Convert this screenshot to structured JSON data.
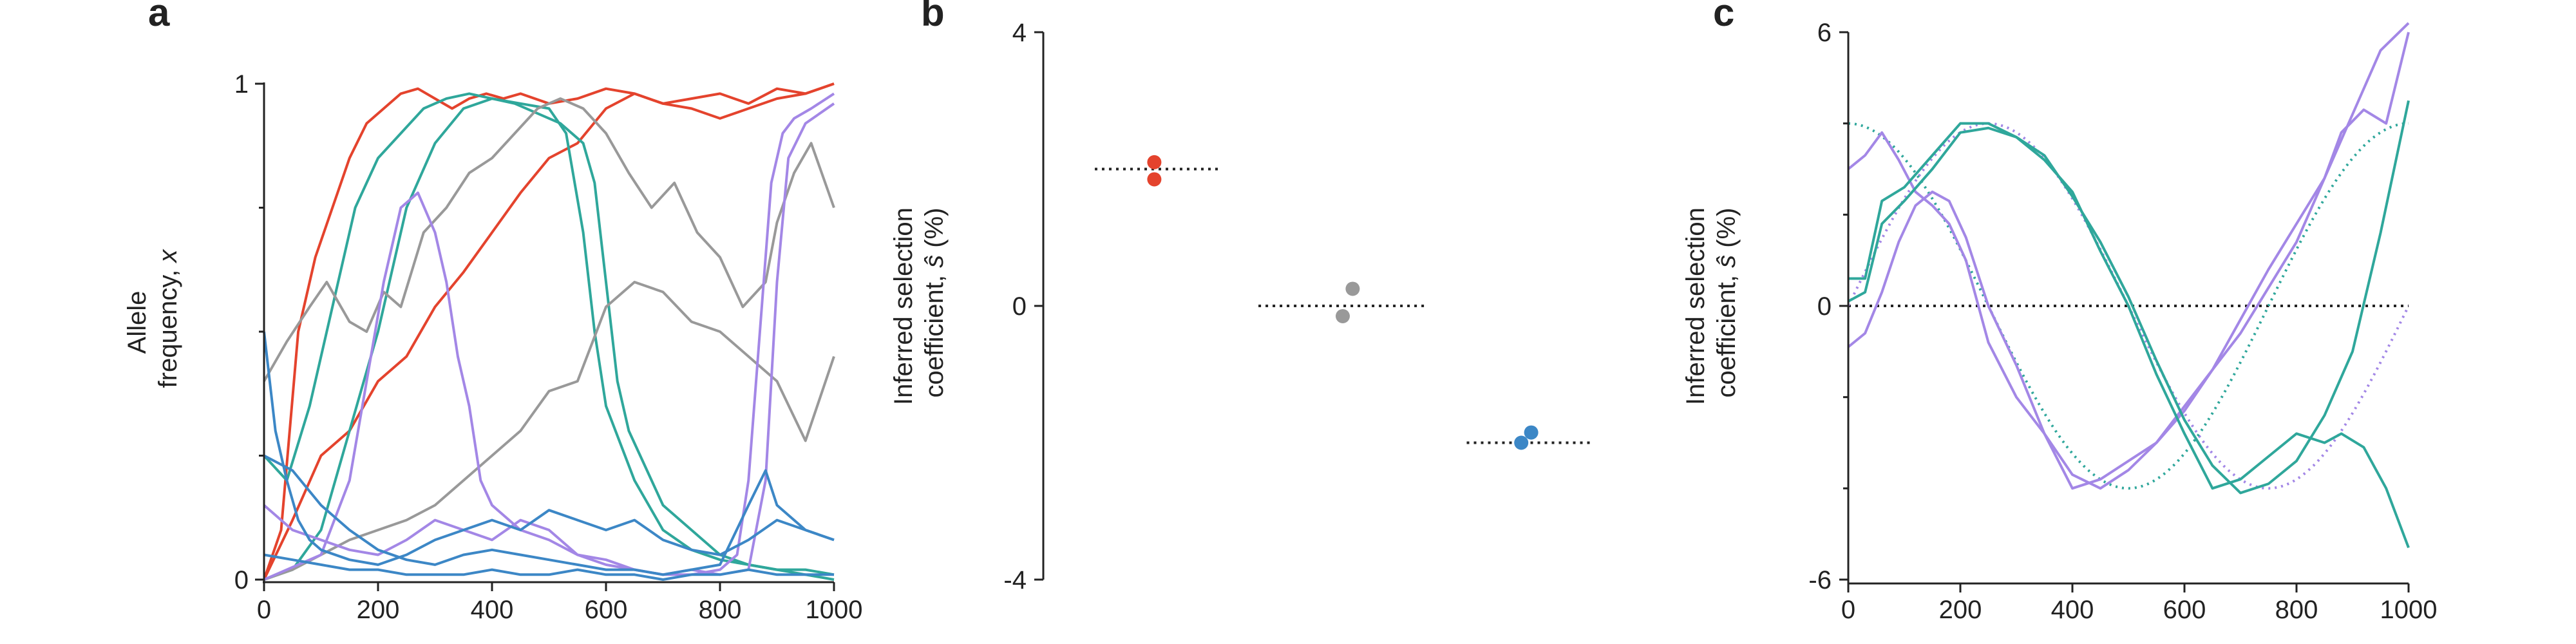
{
  "colors": {
    "red": "#e4432d",
    "teal": "#2fa79b",
    "grey": "#999999",
    "purple": "#a387e6",
    "blue": "#3c87c6",
    "axis": "#222222"
  },
  "chart_data": [
    {
      "panel": "a",
      "type": "line",
      "ylabel_line1": "Allele",
      "ylabel_line2": "frequency, ",
      "ylabel_var": "x",
      "xlim": [
        0,
        1000
      ],
      "ylim": [
        0,
        1
      ],
      "xticks": [
        0,
        200,
        400,
        600,
        800,
        1000
      ],
      "yticks": [
        0,
        1
      ],
      "ytick_labels": [
        "0",
        "1"
      ],
      "yminor": [
        0.25,
        0.5,
        0.75
      ],
      "series": [
        {
          "color": "red",
          "x": [
            0,
            30,
            60,
            90,
            120,
            150,
            180,
            210,
            240,
            270,
            300,
            330,
            360,
            390,
            420,
            450,
            500,
            550,
            600,
            650,
            700,
            750,
            800,
            850,
            900,
            950,
            1000
          ],
          "y": [
            0,
            0.1,
            0.5,
            0.65,
            0.75,
            0.85,
            0.92,
            0.95,
            0.98,
            0.99,
            0.97,
            0.95,
            0.97,
            0.98,
            0.97,
            0.98,
            0.96,
            0.97,
            0.99,
            0.98,
            0.96,
            0.97,
            0.98,
            0.96,
            0.99,
            0.98,
            1.0
          ]
        },
        {
          "color": "red",
          "x": [
            0,
            50,
            100,
            150,
            200,
            250,
            300,
            350,
            400,
            450,
            500,
            550,
            600,
            650,
            700,
            750,
            800,
            850,
            900,
            950,
            1000
          ],
          "y": [
            0,
            0.12,
            0.25,
            0.3,
            0.4,
            0.45,
            0.55,
            0.62,
            0.7,
            0.78,
            0.85,
            0.88,
            0.95,
            0.98,
            0.96,
            0.95,
            0.93,
            0.95,
            0.97,
            0.98,
            1.0
          ]
        },
        {
          "color": "teal",
          "x": [
            0,
            40,
            80,
            120,
            160,
            200,
            240,
            280,
            320,
            360,
            400,
            440,
            480,
            520,
            560,
            580,
            600,
            620,
            640,
            660,
            700,
            750,
            800,
            850,
            900,
            950,
            1000
          ],
          "y": [
            0.25,
            0.2,
            0.35,
            0.55,
            0.75,
            0.85,
            0.9,
            0.95,
            0.97,
            0.98,
            0.97,
            0.96,
            0.94,
            0.92,
            0.88,
            0.8,
            0.6,
            0.4,
            0.3,
            0.25,
            0.15,
            0.1,
            0.05,
            0.03,
            0.02,
            0.01,
            0.0
          ]
        },
        {
          "color": "teal",
          "x": [
            0,
            50,
            100,
            150,
            200,
            250,
            300,
            350,
            400,
            450,
            500,
            530,
            560,
            580,
            600,
            650,
            700,
            750,
            800,
            850,
            900,
            950,
            1000
          ],
          "y": [
            0,
            0.02,
            0.1,
            0.3,
            0.5,
            0.75,
            0.88,
            0.95,
            0.97,
            0.96,
            0.95,
            0.9,
            0.7,
            0.5,
            0.35,
            0.2,
            0.1,
            0.06,
            0.04,
            0.03,
            0.02,
            0.02,
            0.01
          ]
        },
        {
          "color": "grey",
          "x": [
            0,
            40,
            80,
            110,
            150,
            180,
            210,
            240,
            280,
            320,
            360,
            400,
            440,
            480,
            520,
            560,
            600,
            640,
            680,
            720,
            760,
            800,
            840,
            880,
            900,
            930,
            960,
            1000
          ],
          "y": [
            0.4,
            0.48,
            0.55,
            0.6,
            0.52,
            0.5,
            0.58,
            0.55,
            0.7,
            0.75,
            0.82,
            0.85,
            0.9,
            0.95,
            0.97,
            0.95,
            0.9,
            0.82,
            0.75,
            0.8,
            0.7,
            0.65,
            0.55,
            0.6,
            0.72,
            0.82,
            0.88,
            0.75
          ]
        },
        {
          "color": "grey",
          "x": [
            0,
            50,
            100,
            150,
            200,
            250,
            300,
            350,
            400,
            450,
            500,
            550,
            600,
            650,
            700,
            750,
            800,
            850,
            900,
            950,
            1000
          ],
          "y": [
            0,
            0.02,
            0.05,
            0.08,
            0.1,
            0.12,
            0.15,
            0.2,
            0.25,
            0.3,
            0.38,
            0.4,
            0.55,
            0.6,
            0.58,
            0.52,
            0.5,
            0.45,
            0.4,
            0.28,
            0.45
          ]
        },
        {
          "color": "purple",
          "x": [
            0,
            100,
            150,
            180,
            210,
            240,
            270,
            300,
            320,
            340,
            360,
            380,
            400,
            450,
            500,
            550,
            600,
            650,
            700,
            750,
            800,
            830,
            850,
            870,
            890,
            910,
            930,
            960,
            1000
          ],
          "y": [
            0,
            0.05,
            0.2,
            0.4,
            0.6,
            0.75,
            0.78,
            0.7,
            0.6,
            0.45,
            0.35,
            0.2,
            0.15,
            0.1,
            0.08,
            0.05,
            0.04,
            0.02,
            0.01,
            0.01,
            0.02,
            0.05,
            0.2,
            0.5,
            0.8,
            0.9,
            0.93,
            0.95,
            0.98
          ]
        },
        {
          "color": "purple",
          "x": [
            0,
            50,
            100,
            150,
            200,
            250,
            300,
            350,
            400,
            450,
            500,
            550,
            600,
            650,
            700,
            750,
            800,
            850,
            880,
            900,
            920,
            950,
            1000
          ],
          "y": [
            0.15,
            0.1,
            0.08,
            0.06,
            0.05,
            0.08,
            0.12,
            0.1,
            0.08,
            0.12,
            0.1,
            0.05,
            0.03,
            0.02,
            0.01,
            0.02,
            0.01,
            0.02,
            0.2,
            0.6,
            0.85,
            0.92,
            0.96
          ]
        },
        {
          "color": "blue",
          "x": [
            0,
            10,
            20,
            40,
            60,
            80,
            100,
            150,
            200,
            250,
            300,
            350,
            400,
            450,
            500,
            550,
            600,
            650,
            700,
            750,
            800,
            850,
            900,
            950,
            1000
          ],
          "y": [
            0.5,
            0.4,
            0.3,
            0.2,
            0.12,
            0.08,
            0.06,
            0.04,
            0.03,
            0.05,
            0.08,
            0.1,
            0.12,
            0.1,
            0.14,
            0.12,
            0.1,
            0.12,
            0.08,
            0.06,
            0.05,
            0.08,
            0.12,
            0.1,
            0.08
          ]
        },
        {
          "color": "blue",
          "x": [
            0,
            50,
            100,
            150,
            200,
            250,
            300,
            350,
            400,
            450,
            500,
            550,
            600,
            650,
            700,
            750,
            800,
            850,
            880,
            900,
            950,
            1000
          ],
          "y": [
            0.25,
            0.22,
            0.15,
            0.1,
            0.06,
            0.04,
            0.03,
            0.05,
            0.06,
            0.05,
            0.04,
            0.03,
            0.02,
            0.02,
            0.01,
            0.02,
            0.03,
            0.15,
            0.22,
            0.15,
            0.1,
            0.08
          ]
        },
        {
          "color": "blue",
          "x": [
            0,
            50,
            100,
            150,
            200,
            250,
            300,
            350,
            400,
            450,
            500,
            550,
            600,
            650,
            700,
            750,
            800,
            850,
            900,
            950,
            1000
          ],
          "y": [
            0.05,
            0.04,
            0.03,
            0.02,
            0.02,
            0.01,
            0.01,
            0.01,
            0.02,
            0.01,
            0.01,
            0.02,
            0.01,
            0.01,
            0.0,
            0.01,
            0.01,
            0.02,
            0.01,
            0.01,
            0.01
          ]
        }
      ]
    },
    {
      "panel": "b",
      "type": "scatter",
      "ylabel_line1": "Inferred selection",
      "ylabel_line2": "coefficient, ",
      "ylabel_var": "ŝ",
      "ylabel_unit": " (%)",
      "ylim": [
        -4,
        4
      ],
      "yticks": [
        -4,
        0,
        4
      ],
      "ytick_labels": [
        "-4",
        "0",
        "4"
      ],
      "groups": [
        {
          "color": "red",
          "true_value": 2,
          "line_x": [
            0.0,
            0.25
          ],
          "points": [
            {
              "x": 0.12,
              "y": 2.1
            },
            {
              "x": 0.12,
              "y": 1.85
            }
          ]
        },
        {
          "color": "grey",
          "true_value": 0,
          "line_x": [
            0.33,
            0.67
          ],
          "points": [
            {
              "x": 0.52,
              "y": 0.25
            },
            {
              "x": 0.5,
              "y": -0.15
            }
          ]
        },
        {
          "color": "blue",
          "true_value": -2,
          "line_x": [
            0.75,
            1.0
          ],
          "points": [
            {
              "x": 0.88,
              "y": -1.85
            },
            {
              "x": 0.86,
              "y": -2.0
            }
          ]
        }
      ]
    },
    {
      "panel": "c",
      "type": "line",
      "ylabel_line1": "Inferred selection",
      "ylabel_line2": "coefficient, ",
      "ylabel_var": "ŝ",
      "ylabel_unit": " (%)",
      "xlim": [
        0,
        1000
      ],
      "ylim": [
        -6,
        6
      ],
      "xticks": [
        0,
        200,
        400,
        600,
        800,
        1000
      ],
      "yticks": [
        -6,
        0,
        6
      ],
      "ytick_labels": [
        "-6",
        "0",
        "6"
      ],
      "yminor": [
        -4,
        -2,
        2,
        4
      ],
      "reference_line": 0,
      "true_curves": [
        {
          "color": "purple",
          "amplitude": 4,
          "phase": 1.5708
        },
        {
          "color": "teal",
          "amplitude": 4,
          "phase": 0
        }
      ],
      "series": [
        {
          "color": "purple",
          "x": [
            0,
            30,
            60,
            90,
            120,
            150,
            180,
            210,
            250,
            300,
            350,
            400,
            450,
            500,
            550,
            600,
            650,
            700,
            750,
            800,
            850,
            880,
            920,
            960,
            1000
          ],
          "y": [
            3.0,
            3.3,
            3.8,
            3.2,
            2.5,
            2.2,
            1.8,
            1.0,
            -0.8,
            -2.0,
            -2.8,
            -3.7,
            -4.0,
            -3.6,
            -3.0,
            -2.3,
            -1.4,
            -0.3,
            0.8,
            1.8,
            2.8,
            3.8,
            4.3,
            4.0,
            6.0
          ]
        },
        {
          "color": "purple",
          "x": [
            0,
            30,
            60,
            90,
            120,
            150,
            180,
            210,
            250,
            300,
            350,
            400,
            450,
            500,
            550,
            600,
            650,
            700,
            750,
            800,
            850,
            900,
            950,
            1000
          ],
          "y": [
            -0.9,
            -0.6,
            0.3,
            1.4,
            2.2,
            2.5,
            2.3,
            1.5,
            0.0,
            -1.3,
            -2.8,
            -4.0,
            -3.8,
            -3.4,
            -3.0,
            -2.2,
            -1.4,
            -0.6,
            0.4,
            1.4,
            2.8,
            4.2,
            5.6,
            7.0
          ]
        },
        {
          "color": "teal",
          "x": [
            0,
            30,
            60,
            100,
            150,
            200,
            250,
            300,
            350,
            400,
            450,
            500,
            550,
            600,
            650,
            700,
            750,
            800,
            850,
            880,
            920,
            960,
            1000
          ],
          "y": [
            0.6,
            0.6,
            2.3,
            2.6,
            3.3,
            4.0,
            4.0,
            3.7,
            3.2,
            2.5,
            1.2,
            0.0,
            -1.5,
            -2.8,
            -4.0,
            -3.8,
            -3.3,
            -2.8,
            -3.0,
            -2.8,
            -3.1,
            -4.0,
            -5.3
          ]
        },
        {
          "color": "teal",
          "x": [
            0,
            30,
            60,
            100,
            150,
            200,
            250,
            300,
            350,
            400,
            450,
            500,
            550,
            600,
            650,
            700,
            750,
            800,
            850,
            900,
            950,
            1000
          ],
          "y": [
            0.1,
            0.3,
            1.8,
            2.3,
            3.0,
            3.8,
            3.9,
            3.7,
            3.3,
            2.4,
            1.4,
            0.2,
            -1.2,
            -2.5,
            -3.5,
            -4.1,
            -3.9,
            -3.4,
            -2.4,
            -1.0,
            1.6,
            4.5
          ]
        }
      ]
    }
  ]
}
